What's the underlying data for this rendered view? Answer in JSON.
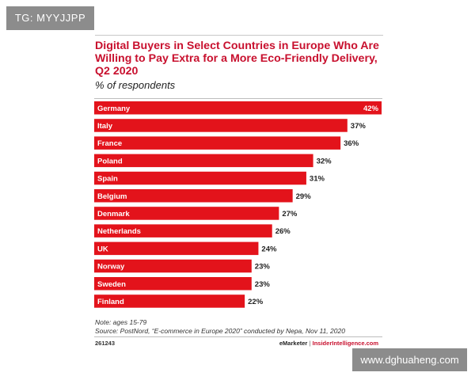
{
  "watermarks": {
    "top_left": "TG: MYYJJPP",
    "bottom_right": "www.dghuaheng.com"
  },
  "colors": {
    "bar": "#e3131b",
    "title": "#c8102e",
    "label_inside": "#ffffff",
    "value_outside": "#222222"
  },
  "chart_data": {
    "type": "bar",
    "orientation": "horizontal",
    "title": "Digital Buyers in Select Countries in Europe Who Are Willing to Pay Extra for a More Eco-Friendly Delivery, Q2 2020",
    "subtitle": "% of respondents",
    "categories": [
      "Germany",
      "Italy",
      "France",
      "Poland",
      "Spain",
      "Belgium",
      "Denmark",
      "Netherlands",
      "UK",
      "Norway",
      "Sweden",
      "Finland"
    ],
    "values": [
      42,
      37,
      36,
      32,
      31,
      29,
      27,
      26,
      24,
      23,
      23,
      22
    ],
    "value_labels": [
      "42%",
      "37%",
      "36%",
      "32%",
      "31%",
      "29%",
      "27%",
      "26%",
      "24%",
      "23%",
      "23%",
      "22%"
    ],
    "xlabel": "",
    "ylabel": "",
    "xlim": [
      0,
      42
    ],
    "grid": false,
    "legend": "none"
  },
  "notes": {
    "line1": "Note: ages 15-79",
    "line2": "Source: PostNord, “E-commerce in Europe 2020” conducted by Nepa, Nov 11, 2020"
  },
  "footer": {
    "chart_id": "261243",
    "brand_primary": "eMarketer",
    "brand_separator": "|",
    "brand_secondary": "InsiderIntelligence.com"
  }
}
